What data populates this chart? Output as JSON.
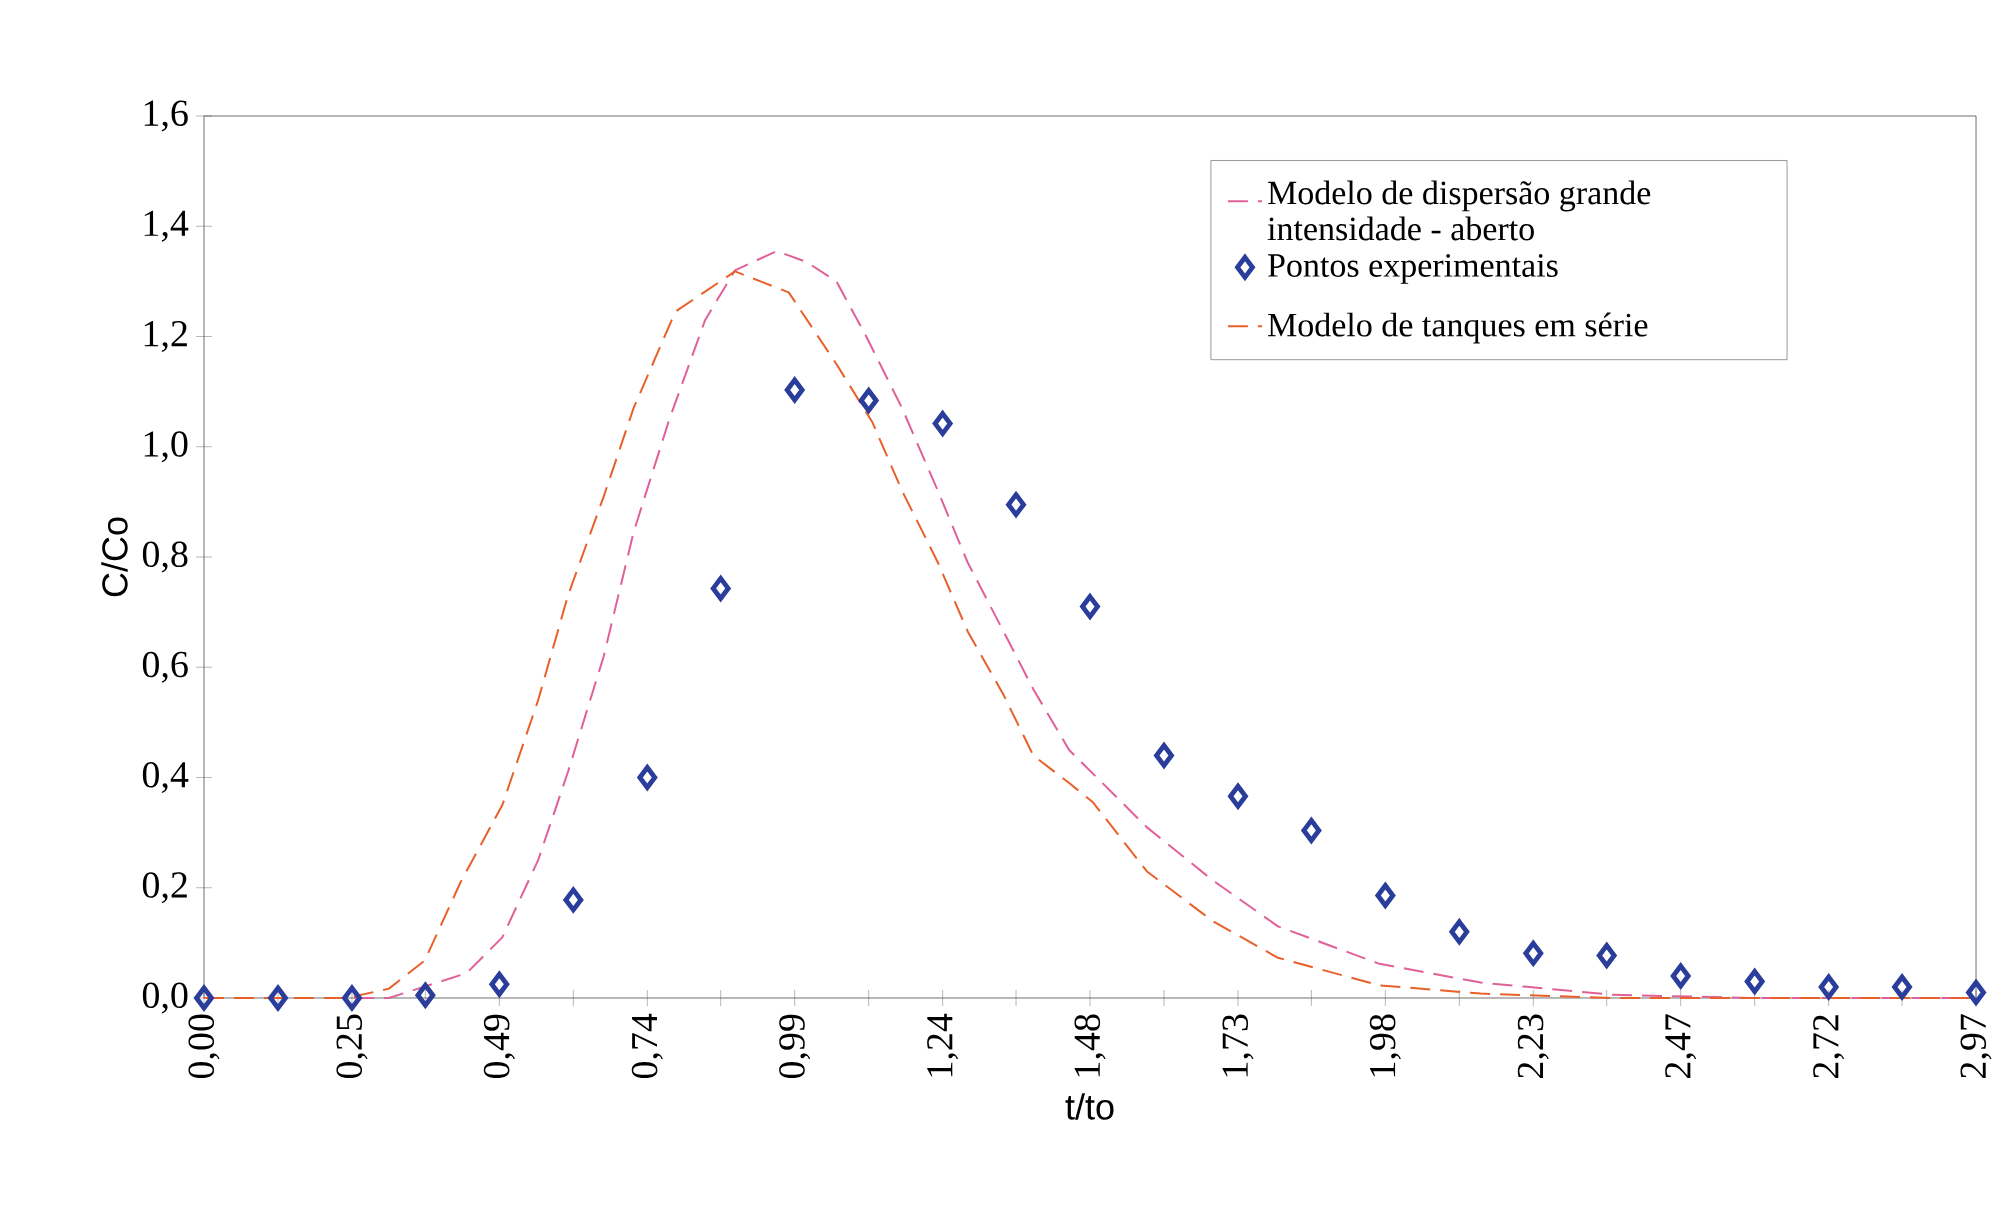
{
  "chart_data": {
    "type": "line",
    "xlabel": "t/to",
    "ylabel": "C/Co",
    "legend": "top right",
    "grid": false,
    "xlim": [
      0,
      2.97
    ],
    "ylim": [
      0,
      1.6
    ],
    "xticks": [
      {
        "value": 0,
        "label": "0,00"
      },
      {
        "value": 0.124,
        "label": null
      },
      {
        "value": 0.248,
        "label": "0,25"
      },
      {
        "value": 0.371,
        "label": null
      },
      {
        "value": 0.495,
        "label": "0,49"
      },
      {
        "value": 0.619,
        "label": null
      },
      {
        "value": 0.743,
        "label": "0,74"
      },
      {
        "value": 0.866,
        "label": null
      },
      {
        "value": 0.99,
        "label": "0,99"
      },
      {
        "value": 1.114,
        "label": null
      },
      {
        "value": 1.238,
        "label": "1,24"
      },
      {
        "value": 1.361,
        "label": null
      },
      {
        "value": 1.485,
        "label": "1,48"
      },
      {
        "value": 1.609,
        "label": null
      },
      {
        "value": 1.733,
        "label": "1,73"
      },
      {
        "value": 1.856,
        "label": null
      },
      {
        "value": 1.98,
        "label": "1,98"
      },
      {
        "value": 2.104,
        "label": null
      },
      {
        "value": 2.228,
        "label": "2,23"
      },
      {
        "value": 2.351,
        "label": null
      },
      {
        "value": 2.475,
        "label": "2,47"
      },
      {
        "value": 2.599,
        "label": null
      },
      {
        "value": 2.723,
        "label": "2,72"
      },
      {
        "value": 2.846,
        "label": null
      },
      {
        "value": 2.97,
        "label": "2,97"
      }
    ],
    "yticks": [
      {
        "value": 0,
        "label": "0,0"
      },
      {
        "value": 0.2,
        "label": "0,2"
      },
      {
        "value": 0.4,
        "label": "0,4"
      },
      {
        "value": 0.6,
        "label": "0,6"
      },
      {
        "value": 0.8,
        "label": "0,8"
      },
      {
        "value": 1.0,
        "label": "1,0"
      },
      {
        "value": 1.2,
        "label": "1,2"
      },
      {
        "value": 1.4,
        "label": "1,4"
      },
      {
        "value": 1.6,
        "label": "1,6"
      }
    ],
    "series": [
      {
        "name": "Modelo de dispersão grande intensidade - aberto",
        "color": "#e0609a",
        "line_style": "dashed",
        "marker": "none",
        "x": [
          0,
          0.31,
          0.44,
          0.5,
          0.56,
          0.61,
          0.67,
          0.72,
          0.78,
          0.84,
          0.89,
          0.96,
          1.01,
          1.06,
          1.11,
          1.17,
          1.23,
          1.28,
          1.34,
          1.39,
          1.45,
          1.58,
          1.69,
          1.8,
          1.97,
          2.14,
          2.36,
          2.59,
          2.97
        ],
        "values": [
          0,
          0,
          0.045,
          0.11,
          0.25,
          0.41,
          0.62,
          0.845,
          1.05,
          1.23,
          1.32,
          1.355,
          1.335,
          1.3,
          1.2,
          1.07,
          0.92,
          0.79,
          0.665,
          0.56,
          0.45,
          0.31,
          0.214,
          0.13,
          0.062,
          0.028,
          0.006,
          0,
          0
        ]
      },
      {
        "name": "Pontos experimentais",
        "type": "scatter",
        "color": "#2a3d9a",
        "marker": "diamond",
        "x": [
          0,
          0.124,
          0.248,
          0.371,
          0.495,
          0.619,
          0.743,
          0.866,
          0.99,
          1.114,
          1.238,
          1.361,
          1.485,
          1.609,
          1.733,
          1.856,
          1.98,
          2.104,
          2.228,
          2.351,
          2.475,
          2.599,
          2.723,
          2.846,
          2.97
        ],
        "values": [
          0,
          0,
          0,
          0.005,
          0.025,
          0.178,
          0.4,
          0.743,
          1.103,
          1.084,
          1.042,
          0.895,
          0.71,
          0.44,
          0.366,
          0.304,
          0.186,
          0.12,
          0.081,
          0.077,
          0.04,
          0.03,
          0.02,
          0.02,
          0.01
        ]
      },
      {
        "name": "Modelo de tanques em série",
        "color": "#e8602a",
        "line_style": "dashed",
        "marker": "none",
        "x": [
          0,
          0.24,
          0.31,
          0.37,
          0.43,
          0.5,
          0.56,
          0.61,
          0.67,
          0.72,
          0.79,
          0.89,
          0.98,
          1.06,
          1.12,
          1.17,
          1.23,
          1.28,
          1.34,
          1.39,
          1.45,
          1.49,
          1.58,
          1.69,
          1.8,
          1.97,
          2.14,
          2.36,
          2.97
        ],
        "values": [
          0,
          0,
          0.017,
          0.068,
          0.21,
          0.35,
          0.54,
          0.73,
          0.91,
          1.07,
          1.245,
          1.318,
          1.28,
          1.15,
          1.045,
          0.92,
          0.79,
          0.665,
          0.55,
          0.44,
          0.39,
          0.355,
          0.23,
          0.14,
          0.073,
          0.023,
          0.008,
          0,
          0
        ]
      }
    ]
  }
}
